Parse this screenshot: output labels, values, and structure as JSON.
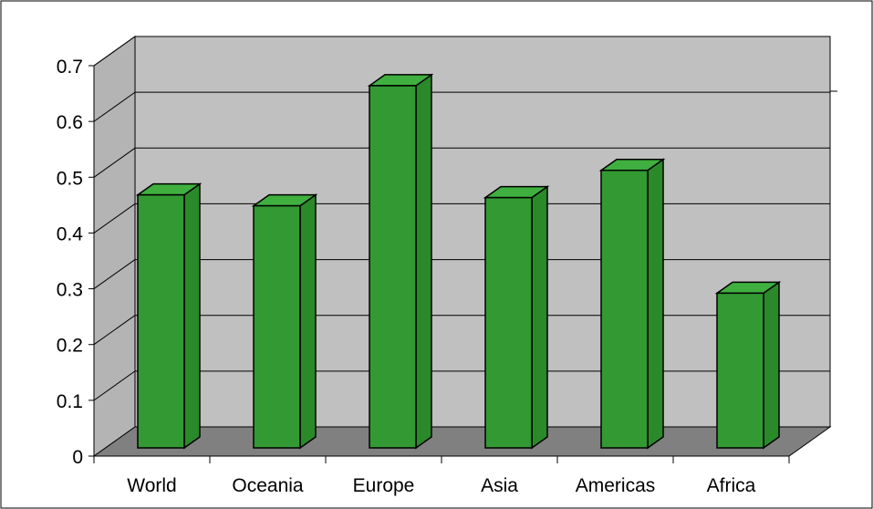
{
  "chart_data": {
    "type": "bar",
    "categories": [
      "World",
      "Oceania",
      "Europe",
      "Asia",
      "Americas",
      "Africa"
    ],
    "values": [
      0.45,
      0.43,
      0.65,
      0.445,
      0.495,
      0.27
    ],
    "ylim": [
      0,
      0.7
    ],
    "yticks": [
      "0",
      "0.1",
      "0.2",
      "0.3",
      "0.4",
      "0.5",
      "0.6",
      "0.7"
    ],
    "grid": true,
    "style": "3d-column",
    "colors": {
      "bar_front": "#339933",
      "bar_side": "#2a8a2a",
      "bar_top": "#3fb03f",
      "back_wall": "#c0c0c0",
      "side_wall": "#b4b4b4",
      "floor": "#808080"
    }
  }
}
